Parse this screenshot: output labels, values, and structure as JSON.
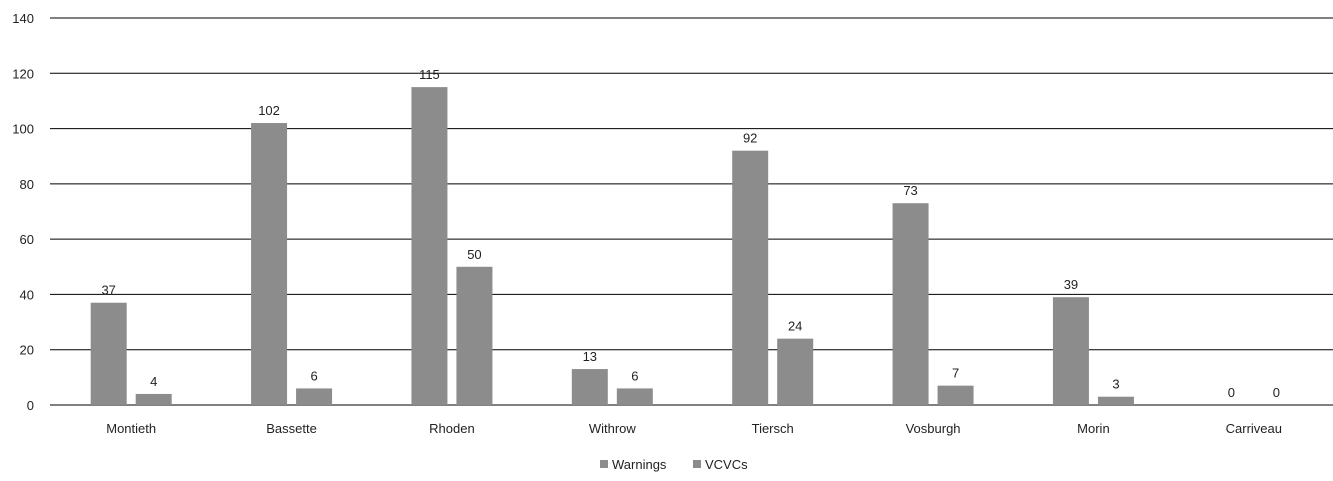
{
  "chart_data": {
    "type": "bar",
    "title": "",
    "xlabel": "",
    "ylabel": "",
    "categories": [
      "Montieth",
      "Bassette",
      "Rhoden",
      "Withrow",
      "Tiersch",
      "Vosburgh",
      "Morin",
      "Carriveau"
    ],
    "series": [
      {
        "name": "Warnings",
        "values": [
          37,
          102,
          115,
          13,
          92,
          73,
          39,
          0
        ],
        "color": "#8c8c8c"
      },
      {
        "name": "VCVCs",
        "values": [
          4,
          6,
          50,
          6,
          24,
          7,
          3,
          0
        ],
        "color": "#8c8c8c"
      }
    ],
    "ylim": [
      0,
      140
    ],
    "yticks": [
      0,
      20,
      40,
      60,
      80,
      100,
      120,
      140
    ],
    "grid": true,
    "data_labels": true,
    "legend_position": "bottom"
  }
}
